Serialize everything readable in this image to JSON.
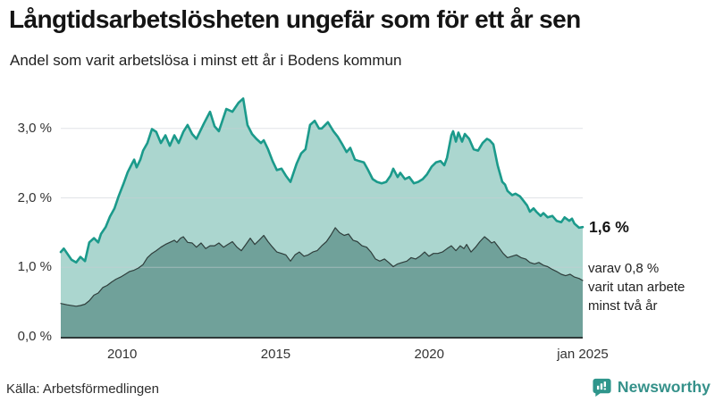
{
  "chart_data": {
    "type": "area",
    "title": "Långtidsarbetslösheten ungefär som för ett år sen",
    "subtitle": "Andel som varit arbetslösa i minst ett år i Bodens kommun",
    "x_axis": {
      "range": [
        2008.0,
        2025.08
      ],
      "ticks": [
        {
          "label": "2010",
          "year": 2010
        },
        {
          "label": "2015",
          "year": 2015
        },
        {
          "label": "2020",
          "year": 2020
        },
        {
          "label": "jan 2025",
          "year": 2025.0
        }
      ]
    },
    "y_axis": {
      "unit": "%",
      "range": [
        0,
        3.6
      ],
      "grid": true,
      "ticks": [
        {
          "label": "0,0 %",
          "value": 0
        },
        {
          "label": "1,0 %",
          "value": 1
        },
        {
          "label": "2,0 %",
          "value": 2
        },
        {
          "label": "3,0 %",
          "value": 3
        }
      ]
    },
    "series": [
      {
        "name": "Arbetslösa minst ett år",
        "end_label": "1,6 %",
        "line_color": "#1b9a8b",
        "fill_color": "#abd6cf",
        "line_width": 2.6,
        "points": [
          [
            2008.0,
            1.22
          ],
          [
            2008.1,
            1.27
          ],
          [
            2008.35,
            1.11
          ],
          [
            2008.5,
            1.07
          ],
          [
            2008.64,
            1.15
          ],
          [
            2008.79,
            1.09
          ],
          [
            2008.93,
            1.36
          ],
          [
            2009.08,
            1.42
          ],
          [
            2009.22,
            1.36
          ],
          [
            2009.31,
            1.48
          ],
          [
            2009.46,
            1.58
          ],
          [
            2009.6,
            1.73
          ],
          [
            2009.75,
            1.85
          ],
          [
            2009.89,
            2.03
          ],
          [
            2010.04,
            2.2
          ],
          [
            2010.18,
            2.37
          ],
          [
            2010.33,
            2.5
          ],
          [
            2010.39,
            2.55
          ],
          [
            2010.47,
            2.44
          ],
          [
            2010.59,
            2.55
          ],
          [
            2010.68,
            2.68
          ],
          [
            2010.82,
            2.79
          ],
          [
            2010.97,
            2.99
          ],
          [
            2011.11,
            2.95
          ],
          [
            2011.26,
            2.79
          ],
          [
            2011.41,
            2.9
          ],
          [
            2011.55,
            2.75
          ],
          [
            2011.7,
            2.9
          ],
          [
            2011.84,
            2.79
          ],
          [
            2011.99,
            2.95
          ],
          [
            2012.13,
            3.05
          ],
          [
            2012.28,
            2.92
          ],
          [
            2012.42,
            2.85
          ],
          [
            2012.66,
            3.07
          ],
          [
            2012.86,
            3.24
          ],
          [
            2013.01,
            3.03
          ],
          [
            2013.15,
            2.96
          ],
          [
            2013.39,
            3.28
          ],
          [
            2013.59,
            3.24
          ],
          [
            2013.79,
            3.37
          ],
          [
            2013.94,
            3.43
          ],
          [
            2014.08,
            3.05
          ],
          [
            2014.23,
            2.92
          ],
          [
            2014.37,
            2.85
          ],
          [
            2014.52,
            2.79
          ],
          [
            2014.61,
            2.83
          ],
          [
            2014.75,
            2.7
          ],
          [
            2014.9,
            2.53
          ],
          [
            2015.04,
            2.4
          ],
          [
            2015.19,
            2.42
          ],
          [
            2015.33,
            2.32
          ],
          [
            2015.48,
            2.23
          ],
          [
            2015.68,
            2.49
          ],
          [
            2015.83,
            2.64
          ],
          [
            2015.97,
            2.7
          ],
          [
            2016.12,
            3.05
          ],
          [
            2016.27,
            3.11
          ],
          [
            2016.41,
            3.0
          ],
          [
            2016.5,
            3.0
          ],
          [
            2016.7,
            3.09
          ],
          [
            2016.88,
            2.96
          ],
          [
            2017.02,
            2.88
          ],
          [
            2017.17,
            2.77
          ],
          [
            2017.31,
            2.66
          ],
          [
            2017.43,
            2.72
          ],
          [
            2017.58,
            2.55
          ],
          [
            2017.72,
            2.53
          ],
          [
            2017.87,
            2.51
          ],
          [
            2018.01,
            2.4
          ],
          [
            2018.16,
            2.27
          ],
          [
            2018.3,
            2.23
          ],
          [
            2018.45,
            2.21
          ],
          [
            2018.6,
            2.23
          ],
          [
            2018.74,
            2.32
          ],
          [
            2018.83,
            2.42
          ],
          [
            2018.97,
            2.3
          ],
          [
            2019.06,
            2.36
          ],
          [
            2019.21,
            2.27
          ],
          [
            2019.35,
            2.3
          ],
          [
            2019.5,
            2.21
          ],
          [
            2019.64,
            2.23
          ],
          [
            2019.79,
            2.27
          ],
          [
            2019.93,
            2.34
          ],
          [
            2020.08,
            2.45
          ],
          [
            2020.22,
            2.51
          ],
          [
            2020.37,
            2.53
          ],
          [
            2020.49,
            2.47
          ],
          [
            2020.58,
            2.58
          ],
          [
            2020.72,
            2.9
          ],
          [
            2020.78,
            2.96
          ],
          [
            2020.87,
            2.81
          ],
          [
            2020.95,
            2.94
          ],
          [
            2021.07,
            2.81
          ],
          [
            2021.16,
            2.92
          ],
          [
            2021.3,
            2.85
          ],
          [
            2021.45,
            2.7
          ],
          [
            2021.59,
            2.68
          ],
          [
            2021.74,
            2.79
          ],
          [
            2021.88,
            2.85
          ],
          [
            2021.97,
            2.83
          ],
          [
            2022.09,
            2.77
          ],
          [
            2022.23,
            2.47
          ],
          [
            2022.38,
            2.23
          ],
          [
            2022.47,
            2.19
          ],
          [
            2022.55,
            2.1
          ],
          [
            2022.7,
            2.04
          ],
          [
            2022.81,
            2.06
          ],
          [
            2022.96,
            2.02
          ],
          [
            2023.05,
            1.97
          ],
          [
            2023.19,
            1.89
          ],
          [
            2023.28,
            1.8
          ],
          [
            2023.4,
            1.85
          ],
          [
            2023.49,
            1.8
          ],
          [
            2023.63,
            1.74
          ],
          [
            2023.72,
            1.78
          ],
          [
            2023.86,
            1.72
          ],
          [
            2024.01,
            1.74
          ],
          [
            2024.15,
            1.67
          ],
          [
            2024.3,
            1.65
          ],
          [
            2024.41,
            1.72
          ],
          [
            2024.56,
            1.67
          ],
          [
            2024.65,
            1.7
          ],
          [
            2024.73,
            1.63
          ],
          [
            2024.88,
            1.57
          ],
          [
            2025.0,
            1.58
          ]
        ]
      },
      {
        "name": "Varav utan arbete minst två år",
        "end_label": "0,8 %",
        "line_color": "#2f3e3c",
        "fill_color": "#70a19a",
        "line_width": 1.2,
        "points": [
          [
            2008.0,
            0.48
          ],
          [
            2008.2,
            0.46
          ],
          [
            2008.5,
            0.44
          ],
          [
            2008.64,
            0.45
          ],
          [
            2008.79,
            0.47
          ],
          [
            2008.93,
            0.52
          ],
          [
            2009.08,
            0.6
          ],
          [
            2009.22,
            0.63
          ],
          [
            2009.37,
            0.71
          ],
          [
            2009.51,
            0.74
          ],
          [
            2009.66,
            0.79
          ],
          [
            2009.8,
            0.83
          ],
          [
            2009.95,
            0.86
          ],
          [
            2010.1,
            0.9
          ],
          [
            2010.24,
            0.94
          ],
          [
            2010.39,
            0.96
          ],
          [
            2010.53,
            0.99
          ],
          [
            2010.68,
            1.04
          ],
          [
            2010.82,
            1.14
          ],
          [
            2010.97,
            1.2
          ],
          [
            2011.11,
            1.24
          ],
          [
            2011.26,
            1.29
          ],
          [
            2011.41,
            1.33
          ],
          [
            2011.55,
            1.36
          ],
          [
            2011.7,
            1.39
          ],
          [
            2011.78,
            1.36
          ],
          [
            2011.9,
            1.42
          ],
          [
            2011.99,
            1.44
          ],
          [
            2012.13,
            1.36
          ],
          [
            2012.28,
            1.35
          ],
          [
            2012.42,
            1.29
          ],
          [
            2012.57,
            1.35
          ],
          [
            2012.72,
            1.27
          ],
          [
            2012.86,
            1.31
          ],
          [
            2013.01,
            1.31
          ],
          [
            2013.15,
            1.35
          ],
          [
            2013.3,
            1.29
          ],
          [
            2013.44,
            1.33
          ],
          [
            2013.59,
            1.37
          ],
          [
            2013.74,
            1.29
          ],
          [
            2013.88,
            1.24
          ],
          [
            2014.03,
            1.33
          ],
          [
            2014.17,
            1.42
          ],
          [
            2014.32,
            1.33
          ],
          [
            2014.46,
            1.39
          ],
          [
            2014.61,
            1.46
          ],
          [
            2014.75,
            1.37
          ],
          [
            2014.9,
            1.29
          ],
          [
            2015.04,
            1.22
          ],
          [
            2015.19,
            1.2
          ],
          [
            2015.33,
            1.18
          ],
          [
            2015.48,
            1.09
          ],
          [
            2015.63,
            1.18
          ],
          [
            2015.77,
            1.22
          ],
          [
            2015.92,
            1.16
          ],
          [
            2016.06,
            1.18
          ],
          [
            2016.21,
            1.22
          ],
          [
            2016.35,
            1.24
          ],
          [
            2016.5,
            1.31
          ],
          [
            2016.65,
            1.37
          ],
          [
            2016.79,
            1.46
          ],
          [
            2016.94,
            1.57
          ],
          [
            2017.08,
            1.5
          ],
          [
            2017.23,
            1.46
          ],
          [
            2017.37,
            1.48
          ],
          [
            2017.52,
            1.39
          ],
          [
            2017.66,
            1.37
          ],
          [
            2017.81,
            1.31
          ],
          [
            2017.96,
            1.29
          ],
          [
            2018.1,
            1.22
          ],
          [
            2018.25,
            1.12
          ],
          [
            2018.39,
            1.09
          ],
          [
            2018.54,
            1.12
          ],
          [
            2018.68,
            1.07
          ],
          [
            2018.83,
            1.01
          ],
          [
            2018.97,
            1.05
          ],
          [
            2019.12,
            1.07
          ],
          [
            2019.27,
            1.09
          ],
          [
            2019.41,
            1.14
          ],
          [
            2019.56,
            1.12
          ],
          [
            2019.7,
            1.16
          ],
          [
            2019.85,
            1.22
          ],
          [
            2019.99,
            1.16
          ],
          [
            2020.14,
            1.2
          ],
          [
            2020.28,
            1.2
          ],
          [
            2020.43,
            1.22
          ],
          [
            2020.58,
            1.27
          ],
          [
            2020.72,
            1.31
          ],
          [
            2020.87,
            1.24
          ],
          [
            2021.01,
            1.31
          ],
          [
            2021.13,
            1.27
          ],
          [
            2021.22,
            1.33
          ],
          [
            2021.36,
            1.22
          ],
          [
            2021.51,
            1.29
          ],
          [
            2021.65,
            1.37
          ],
          [
            2021.8,
            1.44
          ],
          [
            2021.94,
            1.39
          ],
          [
            2022.03,
            1.35
          ],
          [
            2022.12,
            1.37
          ],
          [
            2022.26,
            1.29
          ],
          [
            2022.41,
            1.2
          ],
          [
            2022.55,
            1.14
          ],
          [
            2022.7,
            1.16
          ],
          [
            2022.84,
            1.18
          ],
          [
            2022.99,
            1.14
          ],
          [
            2023.14,
            1.12
          ],
          [
            2023.28,
            1.07
          ],
          [
            2023.43,
            1.05
          ],
          [
            2023.57,
            1.07
          ],
          [
            2023.72,
            1.03
          ],
          [
            2023.86,
            1.01
          ],
          [
            2024.01,
            0.97
          ],
          [
            2024.15,
            0.94
          ],
          [
            2024.3,
            0.9
          ],
          [
            2024.44,
            0.88
          ],
          [
            2024.59,
            0.9
          ],
          [
            2024.73,
            0.86
          ],
          [
            2024.88,
            0.84
          ],
          [
            2025.0,
            0.81
          ]
        ]
      }
    ],
    "annotations": {
      "end_value": "1,6 %",
      "sub_lines": [
        "varav 0,8 %",
        "varit utan arbete",
        "minst två år"
      ]
    }
  },
  "footer": {
    "source": "Källa: Arbetsförmedlingen",
    "brand": "Newsworthy",
    "brand_icon": "newsworthy-bubble-barchart-icon"
  },
  "colors": {
    "gridline": "#c9cdd4",
    "baseline": "#2e3a39",
    "accent_teal": "#1b9a8b",
    "brand_teal": "#35918a",
    "text_dark": "#141414",
    "axis_text": "#333333"
  }
}
